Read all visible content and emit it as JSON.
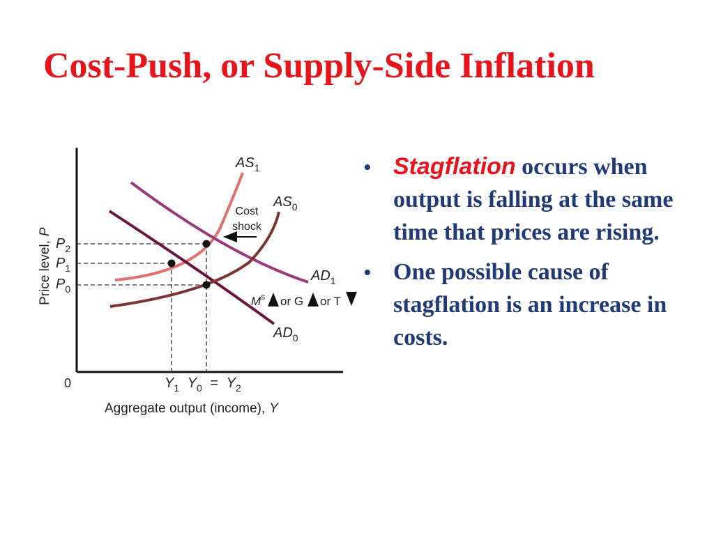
{
  "slide": {
    "title": "Cost-Push, or Supply-Side Inflation"
  },
  "diagram": {
    "y_axis_label": "Price level,",
    "y_axis_var": "P",
    "x_axis_label": "Aggregate output (income),",
    "x_axis_var": "Y",
    "origin": "0",
    "p_labels": [
      {
        "base": "P",
        "sub": "2"
      },
      {
        "base": "P",
        "sub": "1"
      },
      {
        "base": "P",
        "sub": "0"
      }
    ],
    "y_labels": {
      "y1_base": "Y",
      "y1_sub": "1",
      "y0_base": "Y",
      "y0_sub": "0",
      "eq": "=",
      "y2_base": "Y",
      "y2_sub": "2"
    },
    "curves": {
      "as1": {
        "base": "AS",
        "sub": "1",
        "color": "#e07070"
      },
      "as0": {
        "base": "AS",
        "sub": "0",
        "color": "#7a3530"
      },
      "ad1": {
        "base": "AD",
        "sub": "1",
        "color": "#9a3a7a"
      },
      "ad0": {
        "base": "AD",
        "sub": "0",
        "color": "#6a1540"
      }
    },
    "shock_label_1": "Cost",
    "shock_label_2": "shock",
    "policy": {
      "m": "M",
      "m_sup": "s",
      "or1": "or G",
      "or2": "or T"
    }
  },
  "bullets": [
    {
      "emph": "Stagflation",
      "text": " occurs when output is falling at the same time that prices are rising."
    },
    {
      "emph": "",
      "text": "One possible cause of stagflation is an increase in costs."
    }
  ],
  "colors": {
    "title": "#e8141b",
    "body_text": "#1f3a74",
    "emphasis": "#e8141b"
  }
}
